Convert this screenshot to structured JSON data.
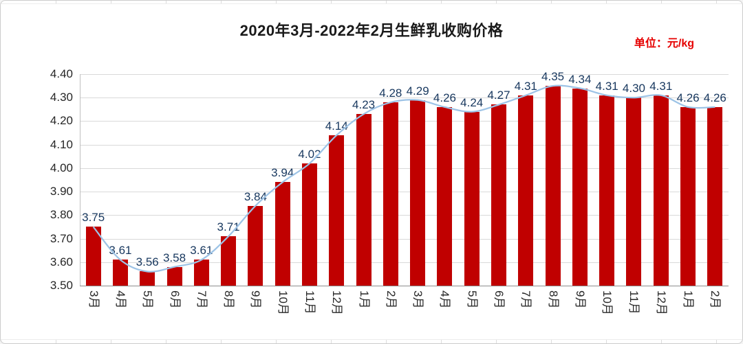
{
  "chart_data": {
    "type": "bar",
    "overlay": "line",
    "title": "2020年3月-2022年2月生鲜乳收购价格",
    "unit_label": "单位：元/kg",
    "categories": [
      "3月",
      "4月",
      "5月",
      "6月",
      "7月",
      "8月",
      "9月",
      "10月",
      "11月",
      "12月",
      "1月",
      "2月",
      "3月",
      "4月",
      "5月",
      "6月",
      "7月",
      "8月",
      "9月",
      "10月",
      "11月",
      "12月",
      "1月",
      "2月"
    ],
    "values": [
      3.75,
      3.61,
      3.56,
      3.58,
      3.61,
      3.71,
      3.84,
      3.94,
      4.02,
      4.14,
      4.23,
      4.28,
      4.29,
      4.26,
      4.24,
      4.27,
      4.31,
      4.35,
      4.34,
      4.31,
      4.3,
      4.31,
      4.26,
      4.26
    ],
    "y_ticks": [
      "4.40",
      "4.30",
      "4.20",
      "4.10",
      "4.00",
      "3.90",
      "3.80",
      "3.70",
      "3.60",
      "3.50"
    ],
    "ylim": [
      3.5,
      4.4
    ],
    "grid": true,
    "legend": "none",
    "colors": {
      "bar": "#C00000",
      "line": "#9DC3E6",
      "data_label": "#17375E",
      "unit_text": "#E60000",
      "grid": "#D9D9D9",
      "baseline": "#8C8C8C",
      "tick_text": "#262626"
    }
  }
}
